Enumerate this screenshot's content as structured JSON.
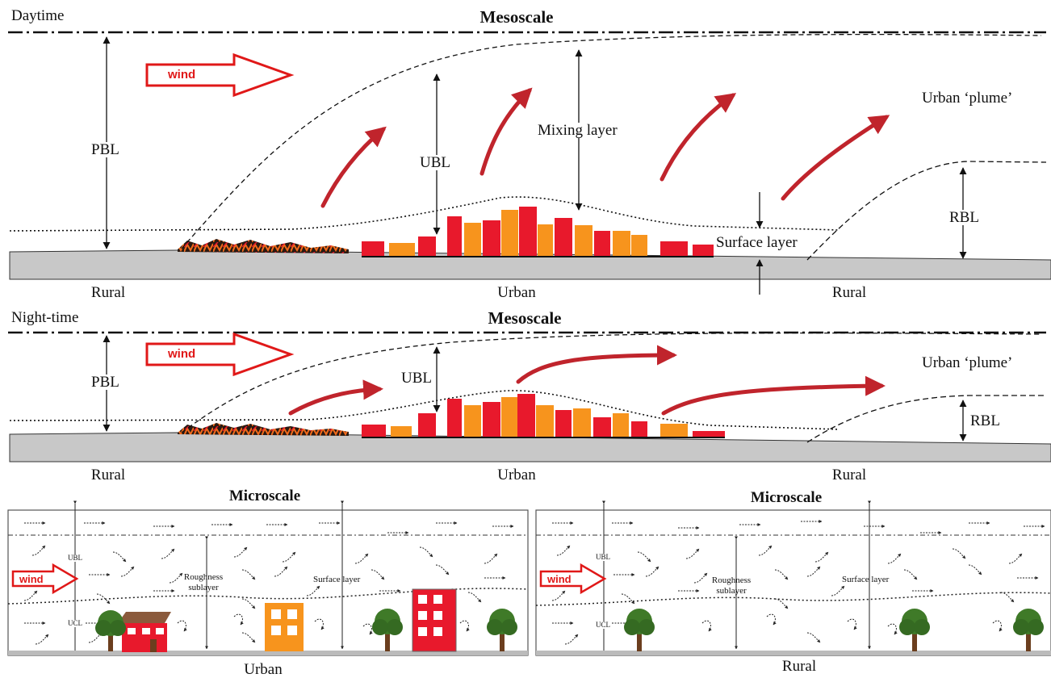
{
  "daytime": {
    "period": "Daytime",
    "title": "Mesoscale",
    "wind": "wind",
    "pbl": "PBL",
    "ubl": "UBL",
    "mixing_layer": "Mixing layer",
    "plume": "Urban ‘plume’",
    "rbl": "RBL",
    "surface_layer": "Surface layer",
    "rural_left": "Rural",
    "urban": "Urban",
    "rural_right": "Rural"
  },
  "nighttime": {
    "period": "Night-time",
    "title": "Mesoscale",
    "wind": "wind",
    "pbl": "PBL",
    "ubl": "UBL",
    "plume": "Urban ‘plume’",
    "rbl": "RBL",
    "rural_left": "Rural",
    "urban": "Urban",
    "rural_right": "Rural"
  },
  "micro_urban": {
    "title": "Microscale",
    "wind": "wind",
    "ubl": "UBL",
    "ucl": "UCL",
    "roughness": [
      "Roughness",
      "sublayer"
    ],
    "surface_layer": "Surface layer",
    "caption": "Urban"
  },
  "micro_rural": {
    "title": "Microscale",
    "wind": "wind",
    "ubl": "UBL",
    "ucl": "UCL",
    "roughness": [
      "Roughness",
      "sublayer"
    ],
    "surface_layer": "Surface layer",
    "caption": "Rural"
  },
  "colors": {
    "wind_red": "#e01818",
    "plume_arrow": "#c0242c",
    "building_red": "#e8192c",
    "building_orange": "#f7941d",
    "ground": "#c8c8c8",
    "tree": "#3f7a28",
    "trunk": "#6b3e1e"
  }
}
